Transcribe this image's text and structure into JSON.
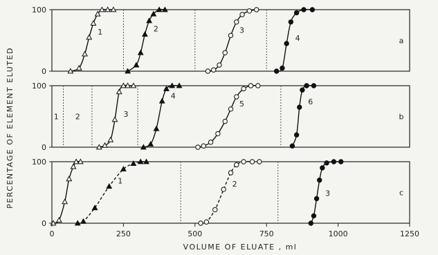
{
  "chart_data": {
    "type": "line",
    "xlabel": "VOLUME OF ELUATE , ml",
    "ylabel": "PERCENTAGE OF ELEMENT ELUTED",
    "xlim": [
      0,
      1250
    ],
    "ylim": [
      0,
      100
    ],
    "xticks": [
      0,
      250,
      500,
      750,
      1000,
      1250
    ],
    "yticks": [
      0,
      100
    ],
    "panels": [
      {
        "id": "a",
        "dividers": [
          250,
          500,
          750
        ],
        "series": [
          {
            "name": "1",
            "marker": "triangle-open",
            "line": "solid",
            "x": [
              65,
              95,
              115,
              130,
              145,
              160,
              175,
              195,
              215
            ],
            "y": [
              0,
              5,
              28,
              55,
              78,
              93,
              100,
              100,
              100
            ]
          },
          {
            "name": "2",
            "marker": "triangle-filled",
            "line": "solid",
            "x": [
              265,
              295,
              310,
              325,
              340,
              355,
              375,
              395
            ],
            "y": [
              0,
              10,
              30,
              60,
              82,
              93,
              100,
              100
            ]
          },
          {
            "name": "3",
            "marker": "circle-open",
            "line": "solid",
            "x": [
              545,
              565,
              585,
              605,
              625,
              645,
              665,
              690,
              715
            ],
            "y": [
              0,
              2,
              10,
              30,
              58,
              80,
              92,
              98,
              100
            ]
          },
          {
            "name": "4",
            "marker": "circle-filled",
            "line": "solid",
            "x": [
              785,
              805,
              820,
              835,
              855,
              880,
              910
            ],
            "y": [
              0,
              5,
              45,
              80,
              95,
              100,
              100
            ]
          }
        ]
      },
      {
        "id": "b",
        "dividers": [
          40,
          140,
          300,
          800
        ],
        "region_labels": [
          {
            "x": 15,
            "text": "1"
          },
          {
            "x": 90,
            "text": "2"
          }
        ],
        "series": [
          {
            "name": "3",
            "marker": "triangle-open",
            "line": "solid",
            "x": [
              165,
              185,
              205,
              220,
              235,
              250,
              265,
              285
            ],
            "y": [
              0,
              3,
              12,
              45,
              90,
              100,
              100,
              100
            ]
          },
          {
            "name": "4",
            "marker": "triangle-filled",
            "line": "solid",
            "x": [
              320,
              345,
              365,
              385,
              400,
              420,
              445
            ],
            "y": [
              0,
              5,
              30,
              75,
              95,
              100,
              100
            ]
          },
          {
            "name": "5",
            "marker": "circle-open",
            "line": "solid",
            "x": [
              510,
              530,
              555,
              580,
              605,
              625,
              645,
              670,
              695,
              720
            ],
            "y": [
              0,
              2,
              8,
              22,
              42,
              62,
              82,
              95,
              100,
              100
            ]
          },
          {
            "name": "6",
            "marker": "circle-filled",
            "line": "solid",
            "x": [
              840,
              855,
              865,
              875,
              890,
              915
            ],
            "y": [
              2,
              20,
              65,
              93,
              100,
              100
            ]
          }
        ]
      },
      {
        "id": "c",
        "dividers": [
          450,
          790
        ],
        "series": [
          {
            "name": "",
            "marker": "triangle-open",
            "line": "solid",
            "x": [
              5,
              25,
              45,
              60,
              75,
              85,
              100
            ],
            "y": [
              0,
              5,
              35,
              72,
              92,
              100,
              100
            ]
          },
          {
            "name": "1",
            "marker": "triangle-filled",
            "line": "dashed",
            "x": [
              90,
              110,
              150,
              200,
              250,
              285,
              310,
              330
            ],
            "y": [
              0,
              3,
              25,
              60,
              88,
              97,
              100,
              100
            ]
          },
          {
            "name": "2",
            "marker": "circle-open",
            "line": "dashed",
            "x": [
              520,
              540,
              570,
              600,
              625,
              645,
              670,
              700,
              725
            ],
            "y": [
              0,
              2,
              22,
              55,
              82,
              95,
              100,
              100,
              100
            ]
          },
          {
            "name": "3",
            "marker": "circle-filled",
            "line": "solid",
            "x": [
              905,
              915,
              925,
              935,
              945,
              960,
              985,
              1010
            ],
            "y": [
              0,
              12,
              40,
              70,
              90,
              98,
              100,
              100
            ]
          }
        ]
      }
    ]
  }
}
